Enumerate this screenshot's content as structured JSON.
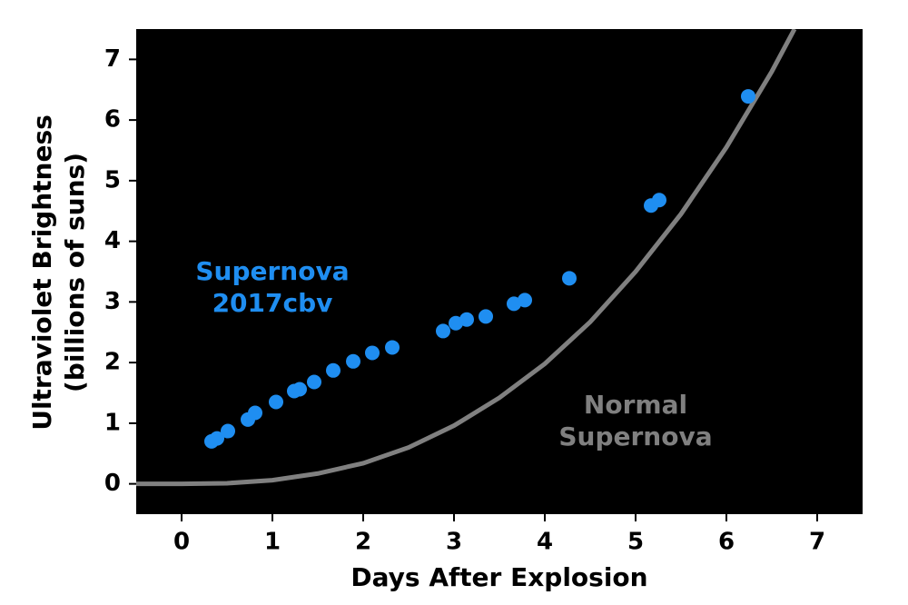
{
  "chart_data": {
    "type": "scatter",
    "xlabel": "Days After Explosion",
    "ylabel": [
      "Ultraviolet Brightness",
      "(billions of suns)"
    ],
    "xlim": [
      -0.5,
      7.5
    ],
    "xticks": [
      0,
      1,
      2,
      3,
      4,
      5,
      6,
      7
    ],
    "ylim": [
      -0.5,
      7.5
    ],
    "yticks": [
      0,
      1,
      2,
      3,
      4,
      5,
      6,
      7
    ],
    "background": "#000000",
    "series": [
      {
        "type": "line",
        "label_lines": [
          "Normal",
          "Supernova"
        ],
        "color": "#808080",
        "x": [
          -0.5,
          0,
          0.5,
          1,
          1.5,
          2,
          2.5,
          3,
          3.5,
          4,
          4.5,
          5,
          5.5,
          6,
          6.5,
          6.75
        ],
        "values": [
          0,
          0,
          0.01,
          0.06,
          0.17,
          0.34,
          0.6,
          0.96,
          1.42,
          1.98,
          2.67,
          3.5,
          4.45,
          5.55,
          6.8,
          7.5
        ]
      },
      {
        "type": "scatter",
        "label_lines": [
          "Supernova",
          "2017cbv"
        ],
        "color": "#1f8ef1",
        "x": [
          0.33,
          0.39,
          0.51,
          0.73,
          0.81,
          1.04,
          1.24,
          1.3,
          1.46,
          1.67,
          1.89,
          2.1,
          2.32,
          2.88,
          3.02,
          3.14,
          3.35,
          3.66,
          3.78,
          4.27,
          5.17,
          5.26,
          6.24
        ],
        "values": [
          0.7,
          0.75,
          0.87,
          1.06,
          1.17,
          1.35,
          1.53,
          1.56,
          1.68,
          1.87,
          2.02,
          2.16,
          2.25,
          2.52,
          2.65,
          2.71,
          2.76,
          2.97,
          3.03,
          3.39,
          4.59,
          4.68,
          6.39
        ]
      }
    ]
  }
}
